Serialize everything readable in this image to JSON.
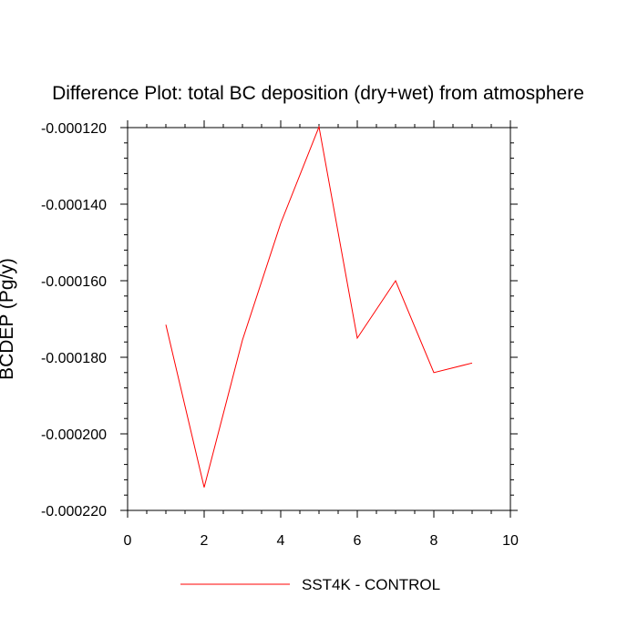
{
  "chart_data": {
    "type": "line",
    "title": "Difference Plot: total BC deposition (dry+wet) from atmosphere",
    "xlabel": "",
    "ylabel": "BCDEP  (Pg/y)",
    "xlim": [
      0,
      10
    ],
    "ylim": [
      -0.00022,
      -0.00012
    ],
    "x_ticks": [
      0,
      2,
      4,
      6,
      8,
      10
    ],
    "x_tick_labels": [
      "0",
      "2",
      "4",
      "6",
      "8",
      "10"
    ],
    "y_ticks": [
      -0.00012,
      -0.00014,
      -0.00016,
      -0.00018,
      -0.0002,
      -0.00022
    ],
    "y_tick_labels": [
      "-0.000120",
      "-0.000140",
      "-0.000160",
      "-0.000180",
      "-0.000200",
      "-0.000220"
    ],
    "grid": false,
    "legend_position": "bottom-center",
    "series": [
      {
        "name": "SST4K - CONTROL",
        "color": "#ff0000",
        "x": [
          1,
          2,
          3,
          4,
          5,
          6,
          7,
          8,
          9
        ],
        "y": [
          -0.0001715,
          -0.000214,
          -0.0001755,
          -0.000145,
          -0.0001198,
          -0.000175,
          -0.00016,
          -0.000184,
          -0.0001815
        ]
      }
    ]
  }
}
